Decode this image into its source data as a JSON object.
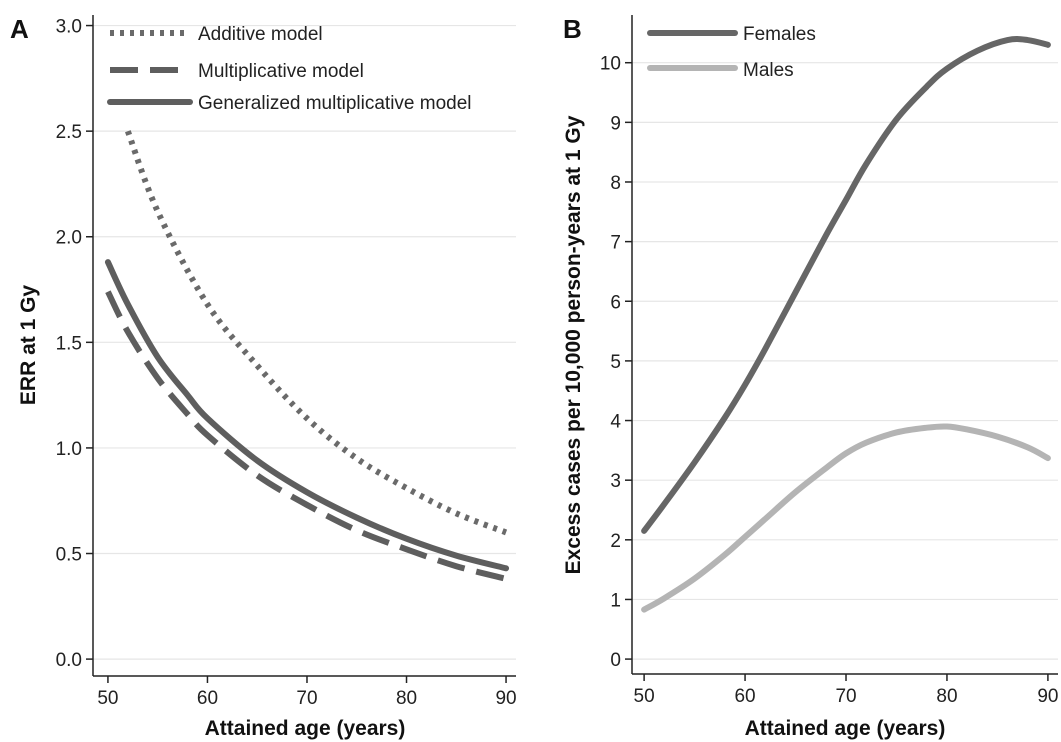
{
  "chart_data": [
    {
      "panel_label": "A",
      "type": "line",
      "xlabel": "Attained age (years)",
      "ylabel": "ERR at 1 Gy",
      "xlim": [
        48.5,
        91
      ],
      "ylim": [
        -0.08,
        3.05
      ],
      "xticks": [
        50,
        60,
        70,
        80,
        90
      ],
      "yticks": [
        0.0,
        0.5,
        1.0,
        1.5,
        2.0,
        2.5,
        3.0
      ],
      "ytick_labels": [
        "0.0",
        "0.5",
        "1.0",
        "1.5",
        "2.0",
        "2.5",
        "3.0"
      ],
      "grid": "horizontal",
      "legend_position": "top-right",
      "series": [
        {
          "name": "Additive model",
          "style": "dotted",
          "color": "#6a6a6a",
          "x": [
            52,
            55,
            60,
            65,
            70,
            75,
            80,
            85,
            90
          ],
          "y": [
            2.5,
            2.12,
            1.68,
            1.39,
            1.14,
            0.95,
            0.81,
            0.69,
            0.6
          ]
        },
        {
          "name": "Multiplicative model",
          "style": "dashed",
          "color": "#5e5e5e",
          "x": [
            50,
            52,
            55,
            58,
            60,
            65,
            70,
            75,
            80,
            85,
            90
          ],
          "y": [
            1.74,
            1.55,
            1.33,
            1.16,
            1.06,
            0.87,
            0.73,
            0.61,
            0.52,
            0.44,
            0.38
          ]
        },
        {
          "name": "Generalized multiplicative model",
          "style": "solid",
          "color": "#5e5e5e",
          "x": [
            50,
            52,
            55,
            58,
            60,
            65,
            70,
            75,
            80,
            85,
            90
          ],
          "y": [
            1.88,
            1.68,
            1.43,
            1.25,
            1.14,
            0.94,
            0.79,
            0.67,
            0.57,
            0.49,
            0.43
          ]
        }
      ]
    },
    {
      "panel_label": "B",
      "type": "line",
      "xlabel": "Attained age (years)",
      "ylabel": "Excess cases per 10,000 person-years at 1 Gy",
      "xlim": [
        48.8,
        91
      ],
      "ylim": [
        -0.25,
        10.8
      ],
      "xticks": [
        50,
        60,
        70,
        80,
        90
      ],
      "yticks": [
        0,
        1,
        2,
        3,
        4,
        5,
        6,
        7,
        8,
        9,
        10
      ],
      "ytick_labels": [
        "0",
        "1",
        "2",
        "3",
        "4",
        "5",
        "6",
        "7",
        "8",
        "9",
        "10"
      ],
      "grid": "horizontal",
      "legend_position": "top-left",
      "series": [
        {
          "name": "Females",
          "style": "solid",
          "color": "#666666",
          "x": [
            50,
            52,
            55,
            58,
            60,
            62,
            65,
            68,
            70,
            72,
            75,
            78,
            80,
            83,
            86,
            88,
            90
          ],
          "y": [
            2.15,
            2.6,
            3.3,
            4.05,
            4.6,
            5.2,
            6.15,
            7.1,
            7.7,
            8.3,
            9.05,
            9.6,
            9.9,
            10.2,
            10.38,
            10.38,
            10.3
          ]
        },
        {
          "name": "Males",
          "style": "solid",
          "color": "#b4b4b4",
          "x": [
            50,
            52,
            55,
            58,
            60,
            62,
            65,
            68,
            70,
            72,
            75,
            78,
            80,
            82,
            85,
            88,
            90
          ],
          "y": [
            0.83,
            1.02,
            1.35,
            1.75,
            2.05,
            2.35,
            2.8,
            3.2,
            3.45,
            3.63,
            3.8,
            3.88,
            3.9,
            3.85,
            3.73,
            3.55,
            3.37
          ]
        }
      ]
    }
  ]
}
